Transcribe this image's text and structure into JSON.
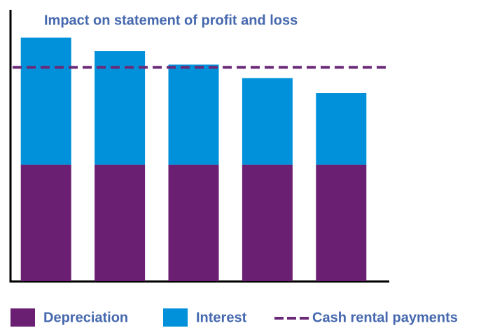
{
  "chart_data": {
    "type": "stacked_bar",
    "title": "Impact on statement of profit and loss",
    "categories": [
      null,
      null,
      null,
      null,
      null
    ],
    "series": [
      {
        "name": "Depreciation",
        "color": "#6b1f73",
        "values": [
          43,
          43,
          43,
          43,
          43
        ]
      },
      {
        "name": "Interest",
        "color": "#0091da",
        "values": [
          47,
          42,
          37,
          32,
          26.5
        ]
      }
    ],
    "reference_line": {
      "name": "Cash rental payments",
      "color": "#6b2a78",
      "value": 79
    },
    "ylim": [
      0,
      100
    ]
  }
}
